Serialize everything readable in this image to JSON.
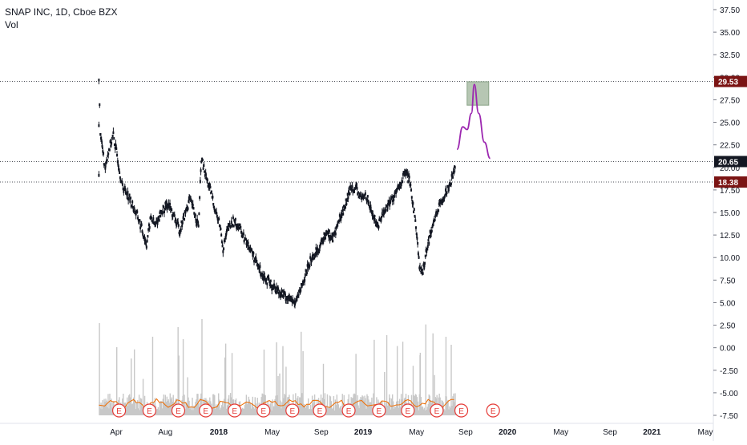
{
  "header": {
    "title": "SNAP INC, 1D, Cboe BZX",
    "volume_label": "Vol"
  },
  "chart_data": {
    "type": "candlestick",
    "symbol": "SNAP INC",
    "interval": "1D",
    "exchange": "Cboe BZX",
    "y_axis": {
      "min": -7.5,
      "max": 37.5,
      "ticks": [
        "37.50",
        "35.00",
        "32.50",
        "30.00",
        "27.50",
        "25.00",
        "22.50",
        "20.00",
        "17.50",
        "15.00",
        "12.50",
        "10.00",
        "7.50",
        "5.00",
        "2.50",
        "0.00",
        "-2.50",
        "-5.00",
        "-7.50"
      ],
      "tick_values": [
        37.5,
        35,
        32.5,
        30,
        27.5,
        25,
        22.5,
        20,
        17.5,
        15,
        12.5,
        10,
        7.5,
        5,
        2.5,
        0,
        -2.5,
        -5,
        -7.5
      ]
    },
    "x_axis": {
      "labels": [
        "Apr",
        "Aug",
        "2018",
        "May",
        "Sep",
        "2019",
        "May",
        "Sep",
        "2020",
        "May",
        "Sep",
        "2021",
        "May"
      ],
      "label_times": [
        2017.29,
        2017.63,
        2018.0,
        2018.37,
        2018.71,
        2019.0,
        2019.37,
        2019.71,
        2020.0,
        2020.37,
        2020.71,
        2021.0,
        2021.37
      ],
      "range": [
        2017.1,
        2021.4
      ]
    },
    "price_path": [
      [
        2017.17,
        19.5
      ],
      [
        2017.17,
        29.5
      ],
      [
        2017.18,
        24.0
      ],
      [
        2017.21,
        20.0
      ],
      [
        2017.24,
        22.0
      ],
      [
        2017.27,
        23.5
      ],
      [
        2017.3,
        21.0
      ],
      [
        2017.33,
        18.0
      ],
      [
        2017.37,
        17.0
      ],
      [
        2017.41,
        15.5
      ],
      [
        2017.44,
        14.5
      ],
      [
        2017.47,
        13.0
      ],
      [
        2017.5,
        11.5
      ],
      [
        2017.53,
        14.5
      ],
      [
        2017.56,
        13.5
      ],
      [
        2017.6,
        15.0
      ],
      [
        2017.65,
        16.0
      ],
      [
        2017.69,
        14.5
      ],
      [
        2017.73,
        13.0
      ],
      [
        2017.77,
        15.0
      ],
      [
        2017.8,
        16.5
      ],
      [
        2017.83,
        15.0
      ],
      [
        2017.86,
        13.5
      ],
      [
        2017.88,
        21.0
      ],
      [
        2017.91,
        19.0
      ],
      [
        2017.95,
        17.0
      ],
      [
        2017.98,
        15.0
      ],
      [
        2018.01,
        13.5
      ],
      [
        2018.03,
        11.0
      ],
      [
        2018.06,
        13.0
      ],
      [
        2018.1,
        14.0
      ],
      [
        2018.14,
        13.5
      ],
      [
        2018.18,
        12.0
      ],
      [
        2018.22,
        11.0
      ],
      [
        2018.27,
        9.0
      ],
      [
        2018.31,
        8.0
      ],
      [
        2018.36,
        7.0
      ],
      [
        2018.4,
        6.5
      ],
      [
        2018.44,
        6.0
      ],
      [
        2018.48,
        5.5
      ],
      [
        2018.52,
        5.0
      ],
      [
        2018.56,
        6.0
      ],
      [
        2018.58,
        7.0
      ],
      [
        2018.63,
        9.5
      ],
      [
        2018.67,
        10.5
      ],
      [
        2018.71,
        11.5
      ],
      [
        2018.75,
        13.0
      ],
      [
        2018.79,
        12.0
      ],
      [
        2018.83,
        14.0
      ],
      [
        2018.87,
        15.5
      ],
      [
        2018.9,
        17.0
      ],
      [
        2018.92,
        18.0
      ],
      [
        2018.95,
        17.5
      ],
      [
        2018.99,
        16.5
      ],
      [
        2019.02,
        17.0
      ],
      [
        2019.06,
        15.0
      ],
      [
        2019.1,
        13.5
      ],
      [
        2019.14,
        15.0
      ],
      [
        2019.18,
        16.0
      ],
      [
        2019.22,
        17.0
      ],
      [
        2019.26,
        18.0
      ],
      [
        2019.29,
        19.5
      ],
      [
        2019.32,
        18.5
      ],
      [
        2019.35,
        15.5
      ],
      [
        2019.37,
        13.0
      ],
      [
        2019.39,
        9.0
      ],
      [
        2019.41,
        8.0
      ],
      [
        2019.44,
        11.0
      ],
      [
        2019.48,
        13.5
      ],
      [
        2019.51,
        15.0
      ],
      [
        2019.55,
        16.5
      ],
      [
        2019.58,
        17.5
      ],
      [
        2019.61,
        18.5
      ],
      [
        2019.64,
        20.65
      ]
    ],
    "horizontal_levels": [
      {
        "value": 29.53,
        "label": "29.53",
        "color": "#7b1414"
      },
      {
        "value": 20.65,
        "label": "20.65",
        "color": "#131722"
      },
      {
        "value": 18.38,
        "label": "18.38",
        "color": "#7b1414"
      }
    ],
    "target_box": {
      "t0": 2019.72,
      "t1": 2019.87,
      "low": 26.9,
      "high": 29.5,
      "color": "#9db39a"
    },
    "projection": [
      [
        2019.65,
        22.0
      ],
      [
        2019.69,
        24.5
      ],
      [
        2019.72,
        24.2
      ],
      [
        2019.75,
        26.0
      ],
      [
        2019.77,
        29.2
      ],
      [
        2019.8,
        26.0
      ],
      [
        2019.84,
        22.8
      ],
      [
        2019.88,
        21.0
      ]
    ],
    "projection_color": "#9c27b0",
    "earnings_markers": {
      "label": "E",
      "times": [
        2017.31,
        2017.52,
        2017.72,
        2017.91,
        2018.11,
        2018.31,
        2018.51,
        2018.7,
        2018.9,
        2019.11,
        2019.31,
        2019.51,
        2019.68,
        2019.9
      ]
    },
    "volume_ma_color": "#ef6c00",
    "earnings_color": "#e53935",
    "grid": false
  }
}
